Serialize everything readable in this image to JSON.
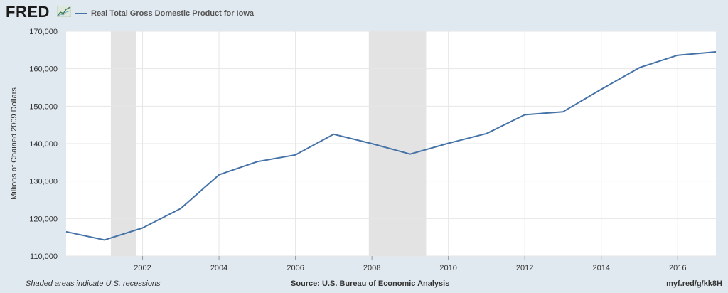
{
  "header": {
    "logo_text": "FRED",
    "logo_icon": "fred-chart-icon",
    "legend_label": "Real Total Gross Domestic Product for Iowa"
  },
  "footer": {
    "left": "Shaded areas indicate U.S. recessions",
    "source": "Source: U.S. Bureau of Economic Analysis",
    "link": "myf.red/g/kk8H"
  },
  "colors": {
    "background": "#e1e9f0",
    "plot": "#ffffff",
    "line": "#4572a7",
    "recession": "#e3e3e3",
    "grid": "#e6e6e6"
  },
  "chart_data": {
    "type": "line",
    "title": "Real Total Gross Domestic Product for Iowa",
    "xlabel": "",
    "ylabel": "Millions of Chained 2009 Dollars",
    "xlim": [
      2000,
      2017
    ],
    "ylim": [
      110000,
      170000
    ],
    "x_ticks": [
      2002,
      2004,
      2006,
      2008,
      2010,
      2012,
      2014,
      2016
    ],
    "y_ticks": [
      110000,
      120000,
      130000,
      140000,
      150000,
      160000,
      170000
    ],
    "y_tick_labels": [
      "110,000",
      "120,000",
      "130,000",
      "140,000",
      "150,000",
      "160,000",
      "170,000"
    ],
    "recessions": [
      {
        "start": 2001.17,
        "end": 2001.83
      },
      {
        "start": 2007.92,
        "end": 2009.42
      }
    ],
    "grid": true,
    "series": [
      {
        "name": "Real Total Gross Domestic Product for Iowa",
        "x": [
          2000,
          2001,
          2002,
          2003,
          2004,
          2005,
          2006,
          2007,
          2008,
          2009,
          2010,
          2011,
          2012,
          2013,
          2014,
          2015,
          2016,
          2017
        ],
        "values": [
          116500,
          114300,
          117500,
          122700,
          131700,
          135200,
          137000,
          142500,
          140000,
          137200,
          140100,
          142700,
          147700,
          148500,
          154500,
          160300,
          163600,
          164500
        ]
      }
    ]
  }
}
